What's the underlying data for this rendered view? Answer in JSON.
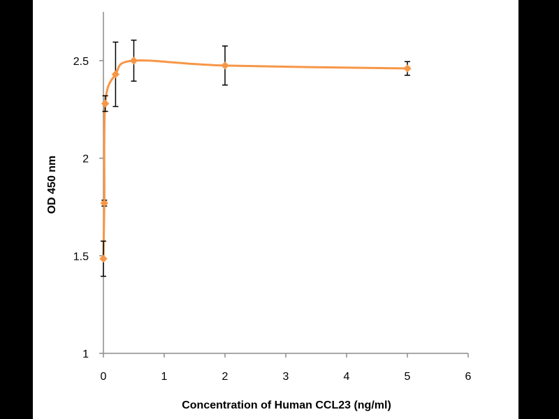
{
  "chart_data": {
    "type": "scatter",
    "title": "",
    "xlabel": "Concentration of Human CCL23 (ng/ml)",
    "ylabel": "OD 450 nm",
    "xlim": [
      0,
      6
    ],
    "ylim": [
      1,
      2.75
    ],
    "x_ticks": [
      0,
      1,
      2,
      3,
      4,
      5,
      6
    ],
    "y_ticks": [
      1,
      1.5,
      2,
      2.5
    ],
    "grid": false,
    "legend": "none",
    "line_style": "smoothed",
    "series": [
      {
        "color": "#F79646",
        "points": [
          {
            "x": 0.0,
            "y": 1.485,
            "err": 0.09
          },
          {
            "x": 0.015,
            "y": 1.77,
            "err": 0.015
          },
          {
            "x": 0.03,
            "y": 2.28,
            "err": 0.04
          },
          {
            "x": 0.2,
            "y": 2.43,
            "err": 0.165
          },
          {
            "x": 0.5,
            "y": 2.5,
            "err": 0.105
          },
          {
            "x": 2.0,
            "y": 2.475,
            "err": 0.1
          },
          {
            "x": 5.0,
            "y": 2.46,
            "err": 0.035
          }
        ]
      }
    ]
  }
}
